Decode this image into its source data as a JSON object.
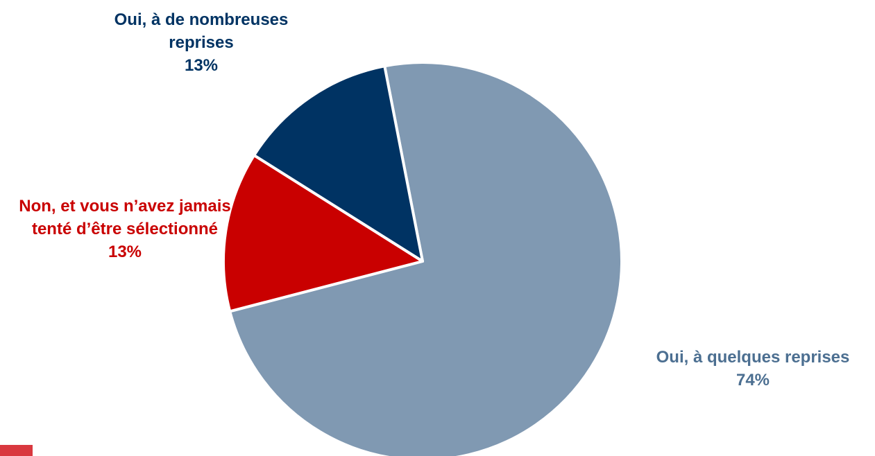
{
  "chart_data": {
    "type": "pie",
    "slices": [
      {
        "label": "Oui, à quelques reprises",
        "value": 74,
        "value_label": "74%",
        "color": "#8099B2"
      },
      {
        "label": "Non, et vous n’avez jamais tenté d’être sélectionné",
        "value": 13,
        "value_label": "13%",
        "color": "#C90000"
      },
      {
        "label": "Oui, à de nombreuses reprises",
        "value": 13,
        "value_label": "13%",
        "color": "#003363"
      }
    ],
    "slice_border_color": "#FFFFFF",
    "legend": "none"
  },
  "decor": {
    "corner_mark_color": "#D9383F"
  }
}
